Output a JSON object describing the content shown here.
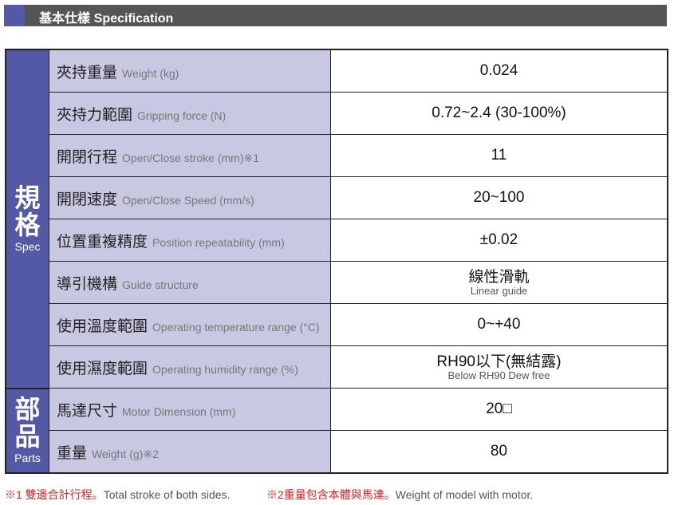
{
  "header": {
    "title_zh": "基本仕樣",
    "title_en": "Specification"
  },
  "groups": {
    "spec": {
      "zh": "規格",
      "en": "Spec"
    },
    "parts": {
      "zh": "部品",
      "en": "Parts"
    }
  },
  "rows": [
    {
      "zh": "夾持重量",
      "en": "Weight (kg)",
      "note": "",
      "value": "0.024",
      "sub": ""
    },
    {
      "zh": "夾持力範圍",
      "en": "Gripping force (N)",
      "note": "",
      "value": "0.72~2.4 (30-100%)",
      "sub": ""
    },
    {
      "zh": "開閉行程",
      "en": "Open/Close  stroke (mm)",
      "note": "※1",
      "value": "11",
      "sub": ""
    },
    {
      "zh": "開閉速度",
      "en": "Open/Close Speed (mm/s)",
      "note": "",
      "value": "20~100",
      "sub": ""
    },
    {
      "zh": "位置重複精度",
      "en": "Position repeatability (mm)",
      "note": "",
      "value": "±0.02",
      "sub": ""
    },
    {
      "zh": "導引機構",
      "en": "Guide structure",
      "note": "",
      "value": "線性滑軌",
      "sub": "Linear guide"
    },
    {
      "zh": "使用溫度範圍",
      "en": "Operating temperature range (°C)",
      "note": "",
      "value": "0~+40",
      "sub": ""
    },
    {
      "zh": "使用濕度範圍",
      "en": "Operating humidity range (%)",
      "note": "",
      "value": "RH90以下(無結露)",
      "sub": "Below RH90 Dew free"
    },
    {
      "zh": "馬達尺寸",
      "en": "Motor Dimension (mm)",
      "note": "",
      "value": "20□",
      "sub": ""
    },
    {
      "zh": "重量",
      "en": "Weight (g)",
      "note": "※2",
      "value": "80",
      "sub": ""
    }
  ],
  "footnotes": [
    {
      "mark": "※1 雙邊合計行程。",
      "text": "Total stroke of both sides."
    },
    {
      "mark": "※2重量包含本體與馬達。",
      "text": "Weight of model with motor."
    }
  ],
  "colors": {
    "accent": "#5459a6",
    "label_bg": "#c9c8e3",
    "header_bg": "#545557",
    "note": "#e02020"
  }
}
